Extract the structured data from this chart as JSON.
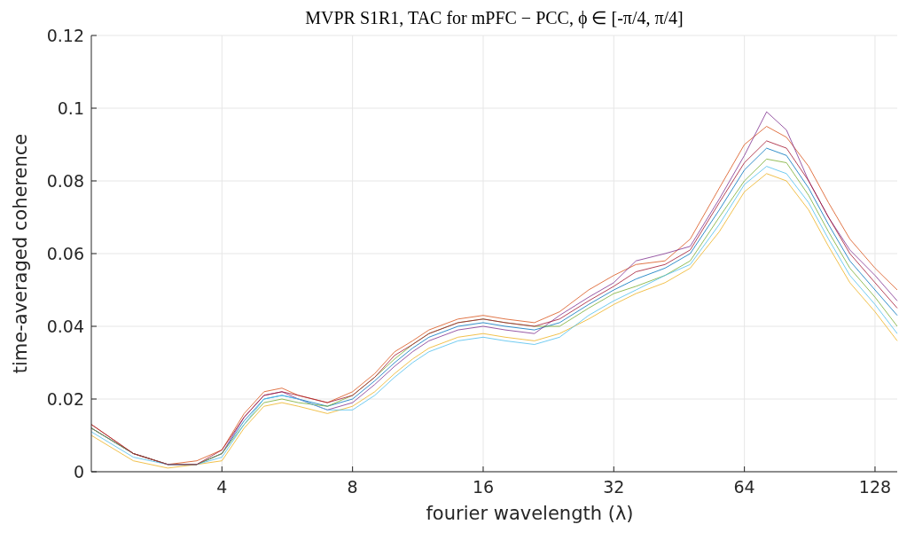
{
  "chart_data": {
    "type": "line",
    "title": "MVPR S1R1, TAC for mPFC − PCC, ϕ ∈ [-π/4, π/4]",
    "xlabel": "fourier wavelength (λ)",
    "ylabel": "time-averaged coherence",
    "log": "x",
    "grid": true,
    "line_style": "solid",
    "marker": "none",
    "xlim": [
      2,
      144
    ],
    "xticks": [
      4,
      8,
      16,
      32,
      64,
      128
    ],
    "ylim": [
      0,
      0.12
    ],
    "yticks": [
      0,
      0.02,
      0.04,
      0.06,
      0.08,
      0.1,
      0.12
    ],
    "x": [
      2,
      2.5,
      3,
      3.5,
      4,
      4.5,
      5,
      5.5,
      6,
      7,
      8,
      9,
      10,
      11,
      12,
      14,
      16,
      18,
      21,
      24,
      28,
      32,
      36,
      42,
      48,
      56,
      64,
      72,
      80,
      90,
      100,
      112,
      128,
      144
    ],
    "series": [
      {
        "color": "#0072bd",
        "values": [
          0.012,
          0.005,
          0.002,
          0.002,
          0.005,
          0.014,
          0.02,
          0.021,
          0.02,
          0.018,
          0.02,
          0.025,
          0.03,
          0.034,
          0.037,
          0.04,
          0.041,
          0.04,
          0.039,
          0.041,
          0.046,
          0.05,
          0.053,
          0.056,
          0.06,
          0.072,
          0.083,
          0.089,
          0.087,
          0.078,
          0.068,
          0.058,
          0.05,
          0.043
        ]
      },
      {
        "color": "#d95319",
        "values": [
          0.013,
          0.005,
          0.002,
          0.003,
          0.006,
          0.016,
          0.022,
          0.023,
          0.021,
          0.019,
          0.022,
          0.027,
          0.033,
          0.036,
          0.039,
          0.042,
          0.043,
          0.042,
          0.041,
          0.044,
          0.05,
          0.054,
          0.057,
          0.058,
          0.064,
          0.078,
          0.09,
          0.095,
          0.092,
          0.084,
          0.074,
          0.064,
          0.056,
          0.05
        ]
      },
      {
        "color": "#edb120",
        "values": [
          0.01,
          0.003,
          0.001,
          0.002,
          0.003,
          0.012,
          0.018,
          0.019,
          0.018,
          0.016,
          0.018,
          0.022,
          0.027,
          0.031,
          0.034,
          0.037,
          0.038,
          0.037,
          0.036,
          0.038,
          0.042,
          0.046,
          0.049,
          0.052,
          0.056,
          0.066,
          0.077,
          0.082,
          0.08,
          0.072,
          0.062,
          0.052,
          0.044,
          0.036
        ]
      },
      {
        "color": "#7e2f8e",
        "values": [
          0.012,
          0.005,
          0.002,
          0.002,
          0.005,
          0.015,
          0.021,
          0.022,
          0.02,
          0.017,
          0.019,
          0.024,
          0.029,
          0.033,
          0.036,
          0.039,
          0.04,
          0.039,
          0.038,
          0.043,
          0.048,
          0.052,
          0.058,
          0.06,
          0.062,
          0.075,
          0.087,
          0.099,
          0.094,
          0.08,
          0.07,
          0.061,
          0.054,
          0.047
        ]
      },
      {
        "color": "#77ac30",
        "values": [
          0.012,
          0.005,
          0.002,
          0.002,
          0.005,
          0.013,
          0.019,
          0.02,
          0.019,
          0.018,
          0.021,
          0.026,
          0.031,
          0.035,
          0.038,
          0.041,
          0.042,
          0.041,
          0.04,
          0.04,
          0.045,
          0.049,
          0.051,
          0.054,
          0.058,
          0.07,
          0.08,
          0.086,
          0.085,
          0.076,
          0.066,
          0.056,
          0.048,
          0.04
        ]
      },
      {
        "color": "#4dbeee",
        "values": [
          0.011,
          0.004,
          0.002,
          0.002,
          0.004,
          0.013,
          0.02,
          0.021,
          0.02,
          0.017,
          0.017,
          0.021,
          0.026,
          0.03,
          0.033,
          0.036,
          0.037,
          0.036,
          0.035,
          0.037,
          0.043,
          0.047,
          0.05,
          0.054,
          0.057,
          0.068,
          0.079,
          0.084,
          0.082,
          0.074,
          0.064,
          0.054,
          0.046,
          0.038
        ]
      },
      {
        "color": "#a2142f",
        "values": [
          0.013,
          0.005,
          0.002,
          0.002,
          0.006,
          0.015,
          0.021,
          0.022,
          0.021,
          0.019,
          0.021,
          0.026,
          0.032,
          0.035,
          0.038,
          0.041,
          0.042,
          0.041,
          0.04,
          0.042,
          0.047,
          0.051,
          0.055,
          0.057,
          0.061,
          0.074,
          0.085,
          0.091,
          0.089,
          0.08,
          0.07,
          0.06,
          0.052,
          0.045
        ]
      }
    ]
  }
}
